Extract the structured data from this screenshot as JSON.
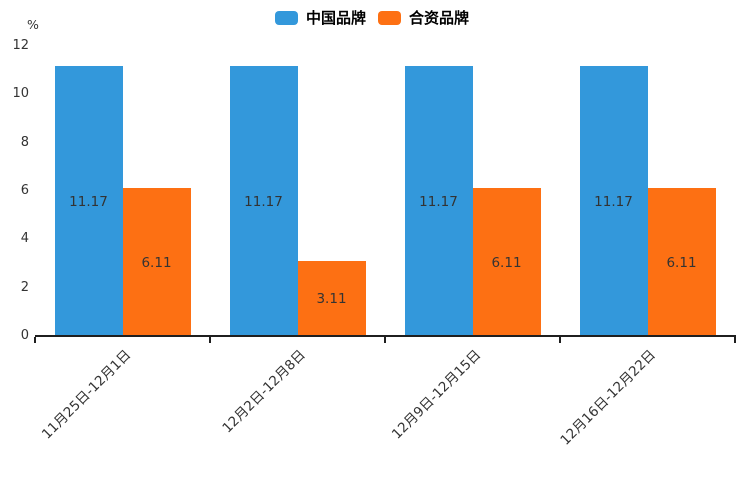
{
  "chart_data": {
    "type": "bar",
    "title": "",
    "categories": [
      "11月25日-12月1日",
      "12月2日-12月8日",
      "12月9日-12月15日",
      "12月16日-12月22日"
    ],
    "series": [
      {
        "name": "中国品牌",
        "color": "#3398db",
        "values": [
          11.17,
          11.17,
          11.17,
          11.17
        ]
      },
      {
        "name": "合资品牌",
        "color": "#fd7013",
        "values": [
          6.11,
          3.11,
          6.11,
          6.11
        ]
      }
    ],
    "value_labels": [
      "11.17",
      "6.11",
      "11.17",
      "3.11",
      "11.17",
      "6.11",
      "11.17",
      "6.11"
    ],
    "xlabel": "",
    "ylabel": "%",
    "ylim": [
      0,
      12
    ],
    "yticks": [
      0,
      2,
      4,
      6,
      8,
      10,
      12
    ],
    "grid": false,
    "legend_position": "top-center",
    "value_label_position": "inside-center",
    "xtick_rotation": 45,
    "axis_color": "#1f1f1f",
    "text_color": "#333333",
    "background_color": "#ffffff"
  }
}
